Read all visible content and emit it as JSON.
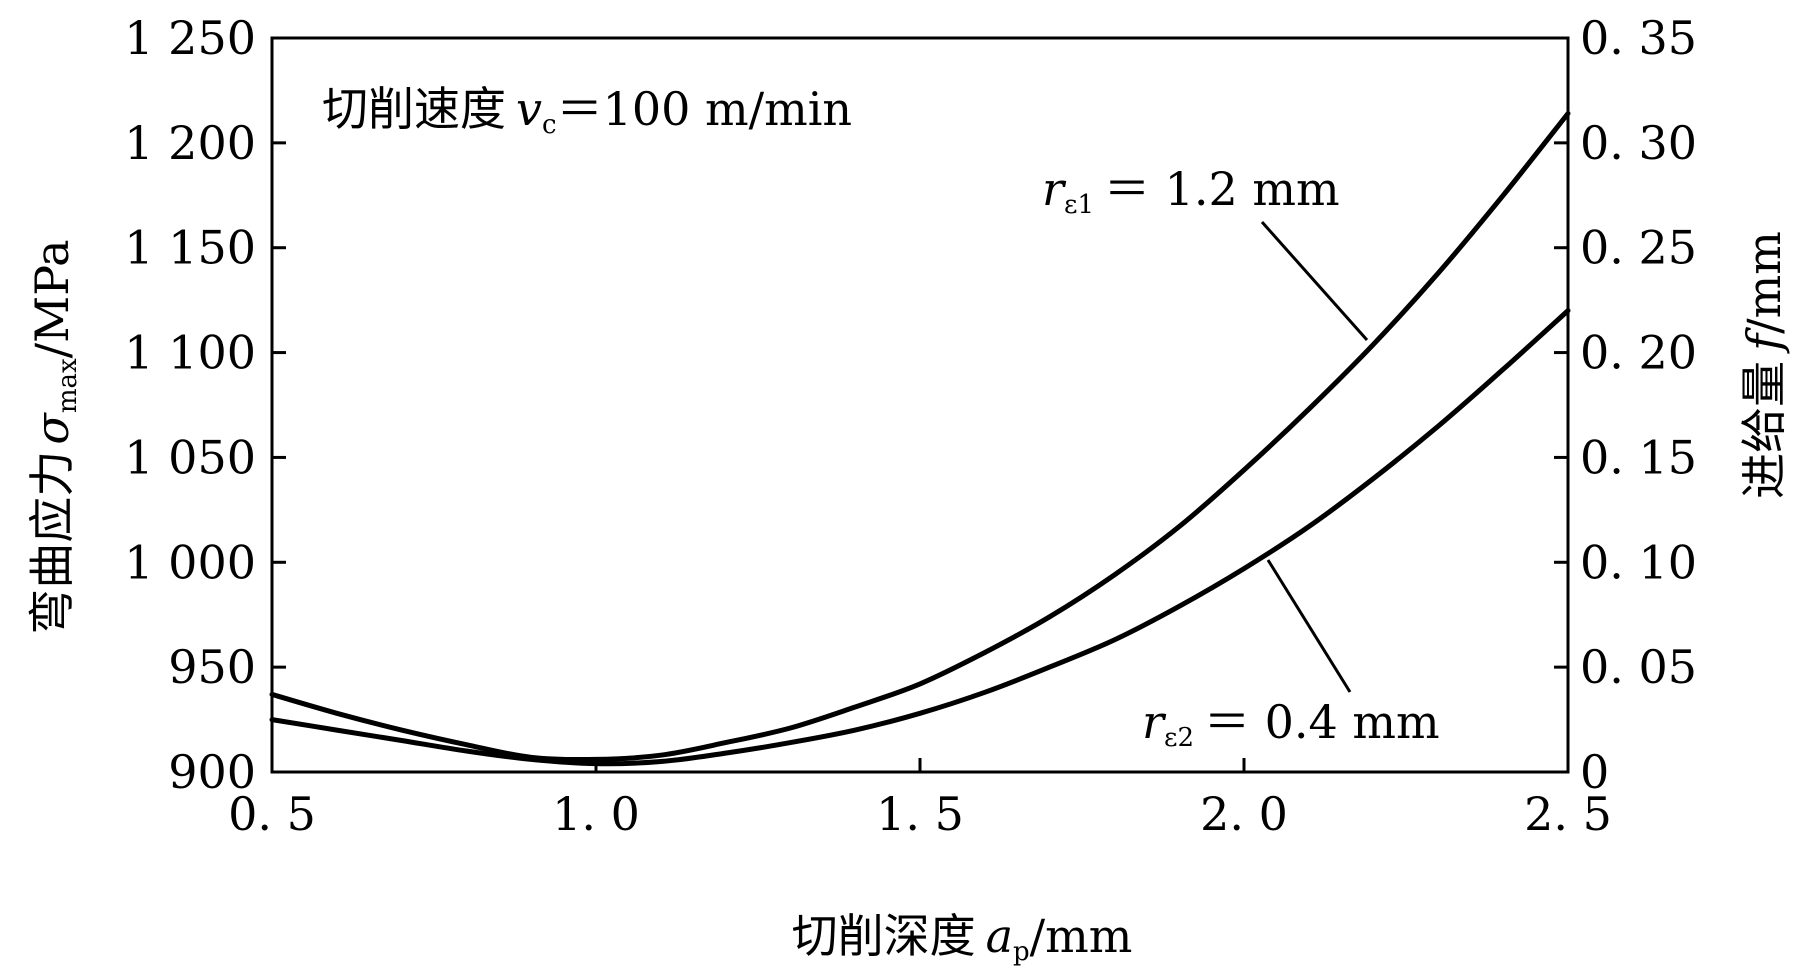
{
  "chart_data": {
    "type": "line",
    "x_axis": {
      "label": "切削深度",
      "symbol": "a",
      "symbol_sub": "p",
      "unit": "/mm",
      "range": [
        0.5,
        2.5
      ],
      "ticks": [
        0.5,
        1.0,
        1.5,
        2.0,
        2.5
      ],
      "tick_labels": [
        "0. 5",
        "1. 0",
        "1. 5",
        "2. 0",
        "2. 5"
      ]
    },
    "y_axis_left": {
      "label": "弯曲应力",
      "symbol": "σ",
      "symbol_sub": "max",
      "unit": "/MPa",
      "range": [
        900,
        1250
      ],
      "ticks": [
        900,
        950,
        1000,
        1050,
        1100,
        1150,
        1200,
        1250
      ],
      "tick_labels": [
        "900",
        "950",
        "1 000",
        "1 050",
        "1 100",
        "1 150",
        "1 200",
        "1 250"
      ]
    },
    "y_axis_right": {
      "label": "进给量",
      "symbol": "f",
      "unit": "/mm",
      "range": [
        0,
        0.35
      ],
      "ticks": [
        0,
        0.05,
        0.1,
        0.15,
        0.2,
        0.25,
        0.3,
        0.35
      ],
      "tick_labels": [
        "0",
        "0. 05",
        "0. 10",
        "0. 15",
        "0. 20",
        "0. 25",
        "0. 30",
        "0. 35"
      ]
    },
    "condition": {
      "label": "切削速度",
      "symbol": "v",
      "symbol_sub": "c",
      "value": "＝100 m/min"
    },
    "series": [
      {
        "name": "r_ε1 = 1.2 mm",
        "label_symbol": "r",
        "label_sub": "ε1",
        "label_value": "＝ 1.2 mm",
        "x": [
          0.5,
          0.6,
          0.7,
          0.8,
          0.9,
          1.0,
          1.1,
          1.2,
          1.3,
          1.4,
          1.5,
          1.6,
          1.7,
          1.8,
          1.9,
          2.0,
          2.1,
          2.2,
          2.3,
          2.4,
          2.5
        ],
        "y": [
          937,
          928,
          920,
          913,
          907,
          906,
          908,
          914,
          921,
          931,
          942,
          957,
          974,
          994,
          1017,
          1044,
          1073,
          1104,
          1138,
          1175,
          1214
        ]
      },
      {
        "name": "r_ε2 = 0.4 mm",
        "label_symbol": "r",
        "label_sub": "ε2",
        "label_value": "＝ 0.4 mm",
        "x": [
          0.5,
          0.6,
          0.7,
          0.8,
          0.9,
          1.0,
          1.1,
          1.2,
          1.3,
          1.4,
          1.5,
          1.6,
          1.7,
          1.8,
          1.9,
          2.0,
          2.1,
          2.2,
          2.3,
          2.4,
          2.5
        ],
        "y": [
          925,
          920,
          915,
          910,
          906,
          904,
          905,
          909,
          914,
          920,
          928,
          938,
          950,
          963,
          979,
          997,
          1017,
          1040,
          1065,
          1092,
          1120
        ]
      }
    ],
    "grid": false,
    "legend": "none"
  }
}
